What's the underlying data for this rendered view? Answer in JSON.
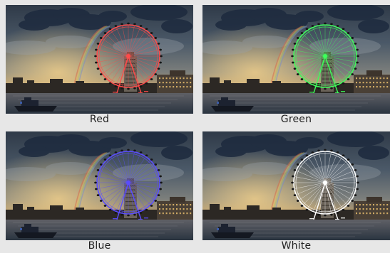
{
  "panels": [
    {
      "label": "Red",
      "highlight_color": "#ff4a4a"
    },
    {
      "label": "Green",
      "highlight_color": "#3dff5a"
    },
    {
      "label": "Blue",
      "highlight_color": "#5a4cff"
    },
    {
      "label": "White",
      "highlight_color": "#ffffff"
    }
  ],
  "scene": {
    "subject": "ferris-wheel",
    "sky_color": "#4b5968",
    "sunset_color": "#c8a46a",
    "water_color": "#2a3440",
    "building_color": "#4a4036"
  }
}
